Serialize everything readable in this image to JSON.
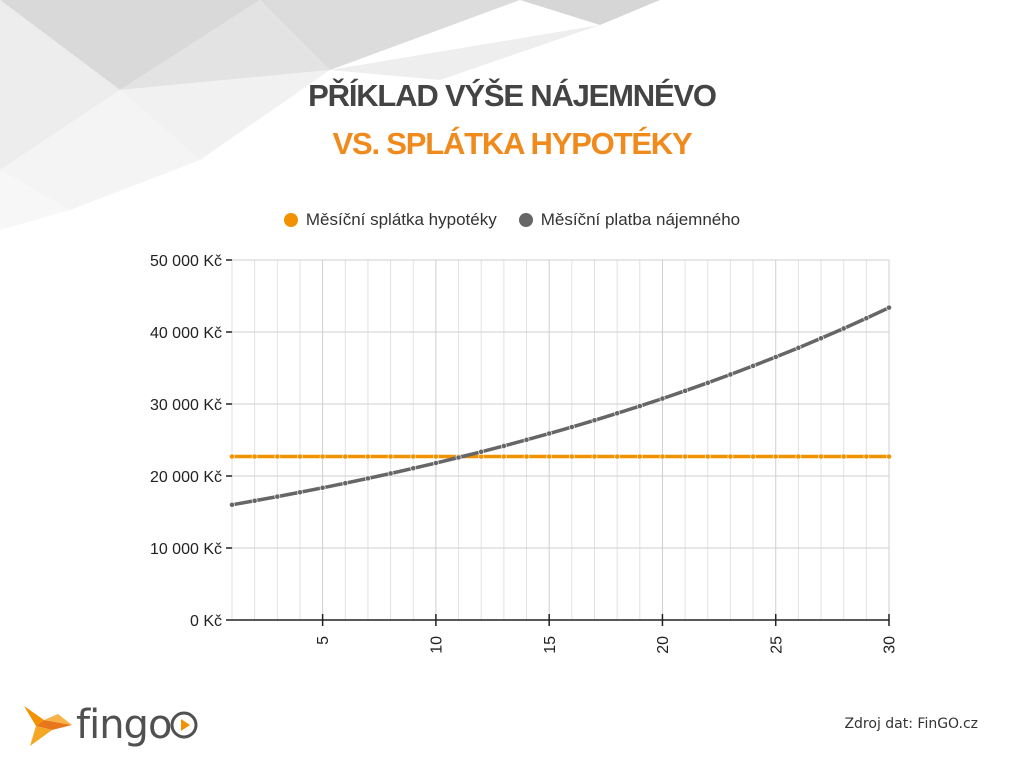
{
  "header": {
    "title_line1": "PŘÍKLAD VÝŠE NÁJEMNÉVO",
    "title_line2": "VS. SPLÁTKA HYPOTÉKY"
  },
  "brand": {
    "name": "fingo",
    "colors": {
      "orange": "#f39200",
      "gray": "#666666",
      "title_gray": "#444444",
      "title_orange": "#f08a1c"
    }
  },
  "footer": {
    "source": "Zdroj dat: FinGO.cz"
  },
  "chart_data": {
    "type": "line",
    "x": [
      1,
      2,
      3,
      4,
      5,
      6,
      7,
      8,
      9,
      10,
      11,
      12,
      13,
      14,
      15,
      16,
      17,
      18,
      19,
      20,
      21,
      22,
      23,
      24,
      25,
      26,
      27,
      28,
      29,
      30
    ],
    "series": [
      {
        "name": "Měsíční splátka hypotéky",
        "color": "#f39200",
        "values": [
          22700,
          22700,
          22700,
          22700,
          22700,
          22700,
          22700,
          22700,
          22700,
          22700,
          22700,
          22700,
          22700,
          22700,
          22700,
          22700,
          22700,
          22700,
          22700,
          22700,
          22700,
          22700,
          22700,
          22700,
          22700,
          22700,
          22700,
          22700,
          22700,
          22700
        ]
      },
      {
        "name": "Měsíční platba nájemného",
        "color": "#666666",
        "values": [
          16000,
          16560,
          17140,
          17740,
          18360,
          19000,
          19670,
          20350,
          21070,
          21800,
          22570,
          23360,
          24170,
          25020,
          25900,
          26800,
          27740,
          28710,
          29710,
          30750,
          31830,
          32940,
          34100,
          35290,
          36520,
          37800,
          39130,
          40490,
          41910,
          43380
        ]
      }
    ],
    "xticks": [
      5,
      10,
      15,
      20,
      25,
      30
    ],
    "yticks": [
      0,
      10000,
      20000,
      30000,
      40000,
      50000
    ],
    "ytick_labels": [
      "0 Kč",
      "10 000 Kč",
      "20 000 Kč",
      "30 000 Kč",
      "40 000 Kč",
      "50 000 Kč"
    ],
    "xlim": [
      1,
      30
    ],
    "ylim": [
      0,
      50000
    ],
    "grid": true,
    "legend_position": "top-center"
  }
}
